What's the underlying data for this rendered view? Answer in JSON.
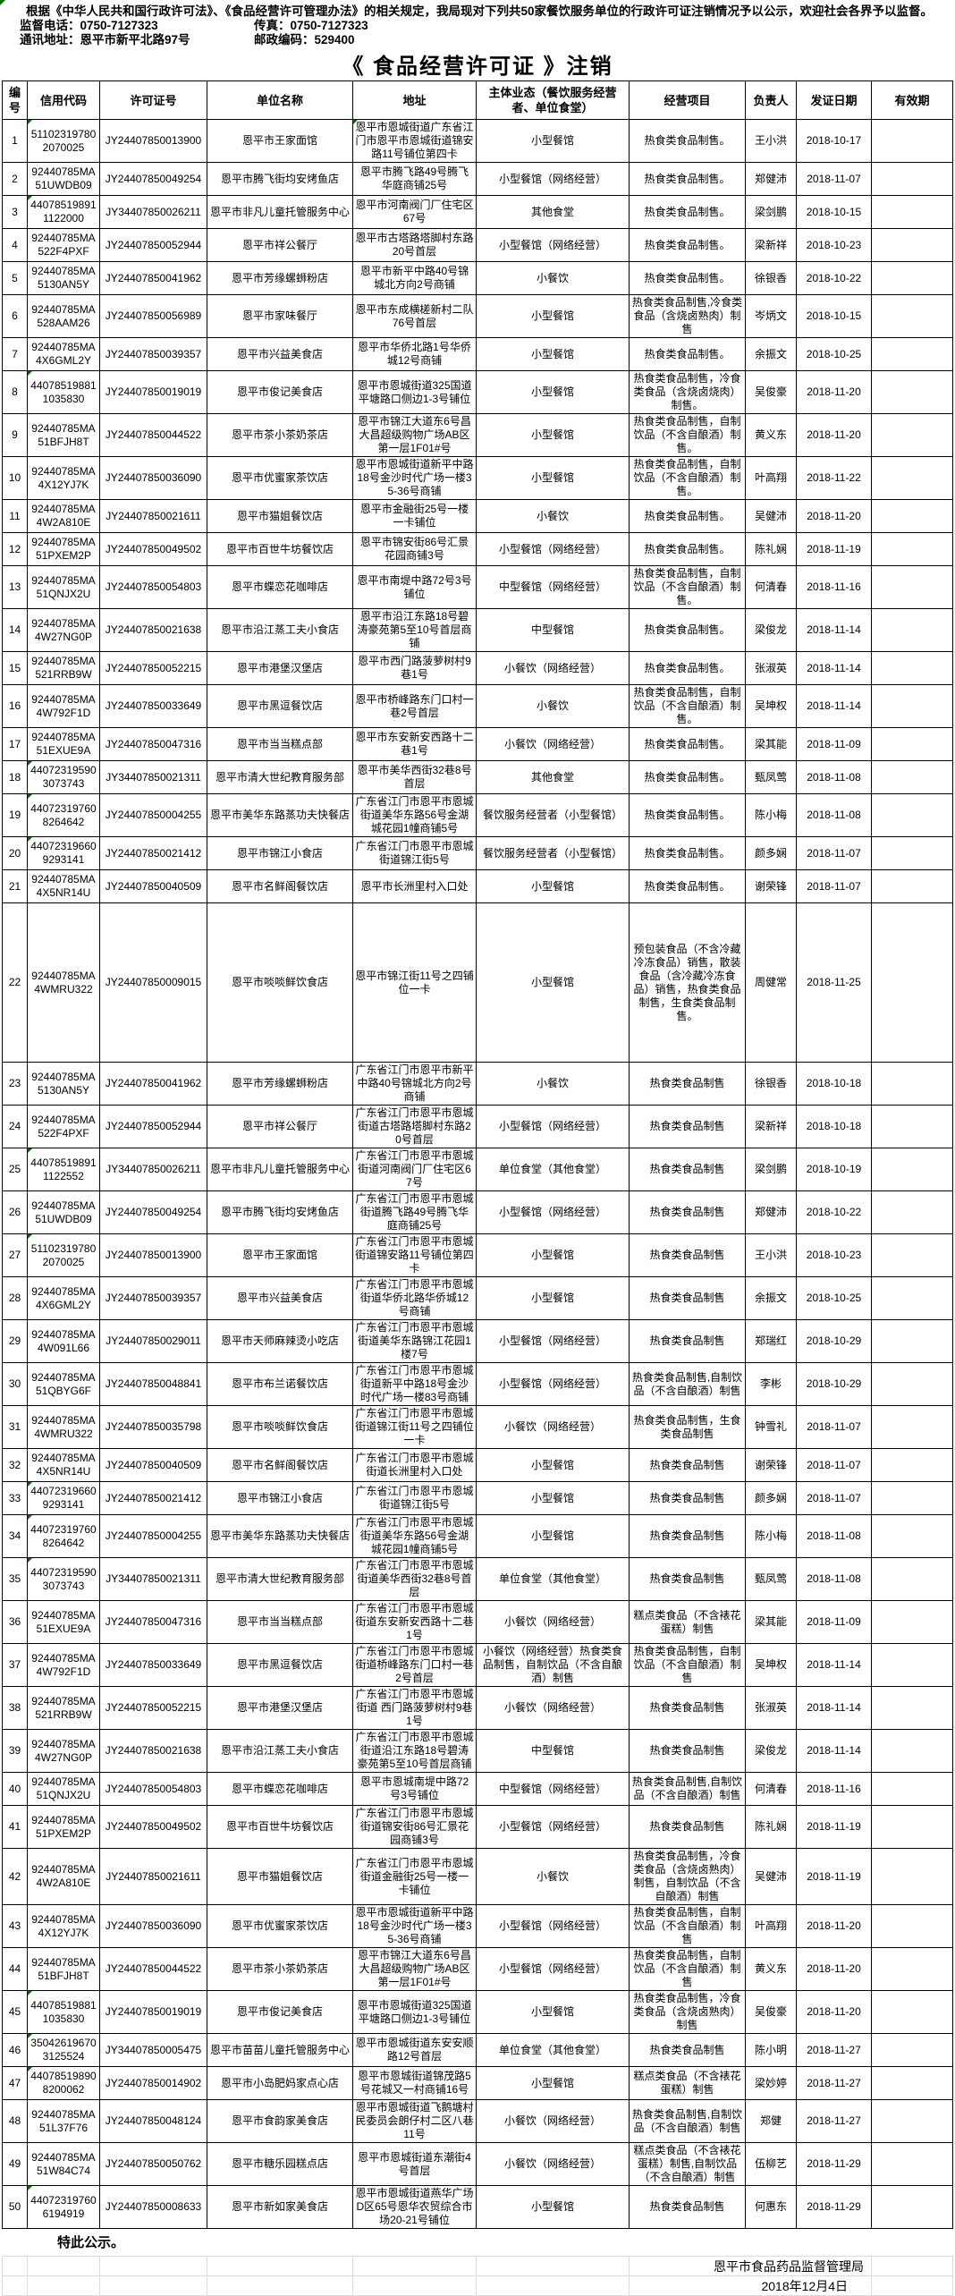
{
  "page": {
    "intro": "根据《中华人民共和国行政许可法》、《食品经营许可管理办法》的相关规定，我局现对下列共50家餐饮服务单位的行政许可证注销情况予以公示，欢迎社会各界予以监督。",
    "phone_label": "监督电话：",
    "phone": "0750-7127323",
    "fax_label": "传真：",
    "fax": "0750-7127323",
    "address_label": "通讯地址：",
    "address": "恩平市新平北路97号",
    "postcode_label": "邮政编码：",
    "postcode": "529400",
    "title": "《 食品经营许可证 》注销"
  },
  "table": {
    "headers": [
      "编号",
      "信用代码",
      "许可证号",
      "单位名称",
      "地址",
      "主体业态（餐饮服务经营者、单位食堂）",
      "经营项目",
      "负责人",
      "发证日期",
      "有效期"
    ],
    "rows": [
      {
        "no": 1,
        "credit": "511023197802070025",
        "license": "JY24407850013900",
        "name": "恩平市王家面馆",
        "addr": "恩平市恩城街道广东省江门市恩平市恩城街道锦安路11号铺位第四卡",
        "type": "小型餐馆",
        "scope": "热食类食品制售。",
        "person": "王小洪",
        "date": "2018-10-17",
        "valid": "",
        "marker": true,
        "addr_marker": true
      },
      {
        "no": 2,
        "credit": "92440785MA51UWDB09",
        "license": "JY24407850049254",
        "name": "恩平市腾飞街均安烤鱼店",
        "addr": "恩平市腾飞路49号腾飞华庭商铺25号",
        "type": "小型餐馆（网络经营）",
        "scope": "热食类食品制售。",
        "person": "郑健沛",
        "date": "2018-11-07",
        "valid": ""
      },
      {
        "no": 3,
        "credit": "440785198911122000",
        "license": "JY34407850026211",
        "name": "恩平市非凡儿童托管服务中心",
        "addr": "恩平市河南阀门厂住宅区67号",
        "type": "其他食堂",
        "scope": "热食类食品制售。",
        "person": "梁剑鹏",
        "date": "2018-10-15",
        "valid": "",
        "marker": true
      },
      {
        "no": 4,
        "credit": "92440785MA522F4PXF",
        "license": "JY24407850052944",
        "name": "恩平市祥公餐厅",
        "addr": "恩平市古塔路塔脚村东路20号首层",
        "type": "小型餐馆（网络经营）",
        "scope": "热食类食品制售。",
        "person": "梁新祥",
        "date": "2018-10-23",
        "valid": ""
      },
      {
        "no": 5,
        "credit": "92440785MA5130AN5Y",
        "license": "JY24407850041962",
        "name": "恩平市芳缘螺蛳粉店",
        "addr": "恩平市新平中路40号锦城北方向2号商铺",
        "type": "小餐饮",
        "scope": "热食类食品制售。",
        "person": "徐银香",
        "date": "2018-10-22",
        "valid": ""
      },
      {
        "no": 6,
        "credit": "92440785MA528AAM26",
        "license": "JY24407850056989",
        "name": "恩平市家味餐厅",
        "addr": "恩平市东成横槎新村二队76号首层",
        "type": "小型餐馆",
        "scope": "热食类食品制售,冷食类食品（含烧卤熟肉）制售",
        "person": "岑炳文",
        "date": "2018-10-15",
        "valid": ""
      },
      {
        "no": 7,
        "credit": "92440785MA4X6GML2Y",
        "license": "JY24407850039357",
        "name": "恩平市兴益美食店",
        "addr": "恩平市华侨北路1号华侨城12号商铺",
        "type": "小型餐馆",
        "scope": "热食类食品制售。",
        "person": "余振文",
        "date": "2018-10-25",
        "valid": ""
      },
      {
        "no": 8,
        "credit": "440785198811035830",
        "license": "JY24407850019019",
        "name": "恩平市俊记美食店",
        "addr": "恩平市恩城街道325国道平塘路口侧边1-3号铺位",
        "type": "小型餐馆",
        "scope": "热食类食品制售，冷食类食品（含烧卤烧肉）制售。",
        "person": "吴俊豪",
        "date": "2018-11-20",
        "valid": "",
        "marker": true
      },
      {
        "no": 9,
        "credit": "92440785MA51BFJH8T",
        "license": "JY24407850044522",
        "name": "恩平市茶小茶奶茶店",
        "addr": "恩平市锦江大道东6号昌大昌超级购物广场AB区第一层1F01#号",
        "type": "小型餐馆",
        "scope": "热食类食品制售，自制饮品（不含自酿酒）制售。",
        "person": "黄义东",
        "date": "2018-11-20",
        "valid": ""
      },
      {
        "no": 10,
        "credit": "92440785MA4X12YJ7K",
        "license": "JY24407850036090",
        "name": "恩平市优蜜家茶饮店",
        "addr": "恩平市恩城街道新平中路18号金沙时代广场一楼35-36号商铺",
        "type": "小型餐馆",
        "scope": "热食类食品制售，自制饮品（不含自酿酒）制售。",
        "person": "叶高翔",
        "date": "2018-11-22",
        "valid": ""
      },
      {
        "no": 11,
        "credit": "92440785MA4W2A810E",
        "license": "JY24407850021611",
        "name": "恩平市猫姐餐饮店",
        "addr": "恩平市金融街25号一楼一卡铺位",
        "type": "小餐饮",
        "scope": "热食类食品制售。",
        "person": "吴健沛",
        "date": "2018-11-20",
        "valid": ""
      },
      {
        "no": 12,
        "credit": "92440785MA51PXEM2P",
        "license": "JY24407850049502",
        "name": "恩平市百世牛坊餐饮店",
        "addr": "恩平市锦安街86号汇景花园商铺3号",
        "type": "小型餐馆（网络经营）",
        "scope": "热食类食品制售。",
        "person": "陈礼娴",
        "date": "2018-11-19",
        "valid": ""
      },
      {
        "no": 13,
        "credit": "92440785MA51QNJX2U",
        "license": "JY24407850054803",
        "name": "恩平市蝶恋花咖啡店",
        "addr": "恩平市南堤中路72号3号铺位",
        "type": "中型餐馆（网络经营）",
        "scope": "热食类食品制售，自制饮品（不含自酿酒）制售。",
        "person": "何清春",
        "date": "2018-11-16",
        "valid": ""
      },
      {
        "no": 14,
        "credit": "92440785MA4W27NG0P",
        "license": "JY24407850021638",
        "name": "恩平市沿江蒸工夫小食店",
        "addr": "恩平市沿江东路18号碧涛豪苑第5至10号首层商铺",
        "type": "中型餐馆",
        "scope": "热食类食品制售。",
        "person": "梁俊龙",
        "date": "2018-11-14",
        "valid": ""
      },
      {
        "no": 15,
        "credit": "92440785MA521RRB9W",
        "license": "JY24407850052215",
        "name": "恩平市港堡汉堡店",
        "addr": "恩平市西门路菠萝树村9巷1号",
        "type": "小餐饮（网络经营）",
        "scope": "热食类食品制售。",
        "person": "张淑英",
        "date": "2018-11-14",
        "valid": ""
      },
      {
        "no": 16,
        "credit": "92440785MA4W792F1D",
        "license": "JY24407850033649",
        "name": "恩平市黑逗餐饮店",
        "addr": "恩平市桥峰路东门口村一巷2号首层",
        "type": "小餐饮",
        "scope": "热食类食品制售，自制饮品（不含自酿酒）制售。",
        "person": "吴坤权",
        "date": "2018-11-14",
        "valid": ""
      },
      {
        "no": 17,
        "credit": "92440785MA51EXUE9A",
        "license": "JY24407850047316",
        "name": "恩平市当当糕点部",
        "addr": "恩平市东安新安西路十二巷1号",
        "type": "小餐饮（网络经营）",
        "scope": "热食类食品制售。",
        "person": "梁其能",
        "date": "2018-11-09",
        "valid": ""
      },
      {
        "no": 18,
        "credit": "440723195903073743",
        "license": "JY34407850021311",
        "name": "恩平市清大世纪教育服务部",
        "addr": "恩平市美华西街32巷8号首层",
        "type": "其他食堂",
        "scope": "热食类食品制售。",
        "person": "甄凤莺",
        "date": "2018-11-08",
        "valid": "",
        "marker": true
      },
      {
        "no": 19,
        "credit": "440723197608264642",
        "license": "JY24407850004255",
        "name": "恩平市美华东路蒸功夫快餐店",
        "addr": "广东省江门市恩平市恩城街道美华东路56号金湖城花园1幢商铺5号",
        "type": "餐饮服务经营者（小型餐馆）",
        "scope": "热食类食品制售。",
        "person": "陈小梅",
        "date": "2018-11-08",
        "valid": "",
        "marker": true
      },
      {
        "no": 20,
        "credit": "440723196609293141",
        "license": "JY24407850021412",
        "name": "恩平市锦江小食店",
        "addr": "广东省江门市恩平市恩城街道锦江街5号",
        "type": "餐饮服务经营者（小型餐馆）",
        "scope": "热食类食品制售。",
        "person": "颜多娴",
        "date": "2018-11-07",
        "valid": "",
        "marker": true
      },
      {
        "no": 21,
        "credit": "92440785MA4X5NR14U",
        "license": "JY24407850040509",
        "name": "恩平市名鲜阁餐饮店",
        "addr": "恩平市长洲里村入口处",
        "type": "小型餐馆",
        "scope": "热食类食品制售。",
        "person": "谢荣锋",
        "date": "2018-11-07",
        "valid": ""
      },
      {
        "no": 22,
        "credit": "92440785MA4WMRU322",
        "license": "JY24407850009015",
        "name": "恩平市啖啖鲜饮食店",
        "addr": "恩平市锦江街11号之四铺位一卡",
        "type": "小型餐馆",
        "scope": "预包装食品（不含冷藏冷冻食品）销售，散装食品（含冷藏冷冻食品）销售，热食类食品制售，生食类食品制售。",
        "person": "周健常",
        "date": "2018-11-25",
        "valid": ""
      },
      {
        "no": 23,
        "credit": "92440785MA5130AN5Y",
        "license": "JY24407850041962",
        "name": "恩平市芳缘螺蛳粉店",
        "addr": "广东省江门市恩平市新平中路40号锦城北方向2号商铺",
        "type": "小餐饮",
        "scope": "热食类食品制售",
        "person": "徐银香",
        "date": "2018-10-18",
        "valid": ""
      },
      {
        "no": 24,
        "credit": "92440785MA522F4PXF",
        "license": "JY24407850052944",
        "name": "恩平市祥公餐厅",
        "addr": "广东省江门市恩平市恩城街道古塔路塔脚村东路20号首层",
        "type": "小型餐馆（网络经营）",
        "scope": "热食类食品制售",
        "person": "梁新祥",
        "date": "2018-10-18",
        "valid": ""
      },
      {
        "no": 25,
        "credit": "440785198911122552",
        "license": "JY34407850026211",
        "name": "恩平市非凡儿童托管服务中心",
        "addr": "广东省江门市恩平市恩城街道河南阀门厂住宅区67号",
        "type": "单位食堂（其他食堂）",
        "scope": "热食类食品制售",
        "person": "梁剑鹏",
        "date": "2018-10-19",
        "valid": "",
        "marker": true
      },
      {
        "no": 26,
        "credit": "92440785MA51UWDB09",
        "license": "JY24407850049254",
        "name": "恩平市腾飞街均安烤鱼店",
        "addr": "广东省江门市恩平市恩城街道腾飞路49号腾飞华庭商铺25号",
        "type": "小型餐馆（网络经营）",
        "scope": "热食类食品制售",
        "person": "郑健沛",
        "date": "2018-10-22",
        "valid": ""
      },
      {
        "no": 27,
        "credit": "511023197802070025",
        "license": "JY24407850013900",
        "name": "恩平市王家面馆",
        "addr": "广东省江门市恩平市恩城街道锦安路11号铺位第四卡",
        "type": "小型餐馆",
        "scope": "热食类食品制售",
        "person": "王小洪",
        "date": "2018-10-23",
        "valid": "",
        "marker": true
      },
      {
        "no": 28,
        "credit": "92440785MA4X6GML2Y",
        "license": "JY24407850039357",
        "name": "恩平市兴益美食店",
        "addr": "广东省江门市恩平市恩城街道华侨北路华侨城12号商铺",
        "type": "小型餐馆",
        "scope": "热食类食品制售",
        "person": "余振文",
        "date": "2018-10-25",
        "valid": ""
      },
      {
        "no": 29,
        "credit": "92440785MA4W091L66",
        "license": "JY24407850029011",
        "name": "恩平市天师麻辣烫小吃店",
        "addr": "广东省江门市恩平市恩城街道美华东路锦江花园1楼7号",
        "type": "小型餐馆（网络经营）",
        "scope": "热食类食品制售",
        "person": "郑瑞红",
        "date": "2018-10-29",
        "valid": ""
      },
      {
        "no": 30,
        "credit": "92440785MA51QBYG6F",
        "license": "JY24407850048841",
        "name": "恩平市布兰诺餐饮店",
        "addr": "广东省江门市恩平市恩城街道新平中路18号金沙时代广场一楼83号商铺",
        "type": "小型餐馆（网络经营）",
        "scope": "热食类食品制售,自制饮品（不含自酿酒）制售",
        "person": "李彬",
        "date": "2018-10-29",
        "valid": ""
      },
      {
        "no": 31,
        "credit": "92440785MA4WMRU322",
        "license": "JY24407850035798",
        "name": "恩平市啖啖鲜饮食店",
        "addr": "广东省江门市恩平市恩城街道锦江街11号之四铺位一卡",
        "type": "小餐饮（网络经营）",
        "scope": "热食类食品制售，生食类食品制售",
        "person": "钟雪礼",
        "date": "2018-11-07",
        "valid": ""
      },
      {
        "no": 32,
        "credit": "92440785MA4X5NR14U",
        "license": "JY24407850040509",
        "name": "恩平市名鲜阁餐饮店",
        "addr": "广东省江门市恩平市恩城街道长洲里村入口处",
        "type": "小型餐馆",
        "scope": "热食类食品制售",
        "person": "谢荣锋",
        "date": "2018-11-07",
        "valid": ""
      },
      {
        "no": 33,
        "credit": "440723196609293141",
        "license": "JY24407850021412",
        "name": "恩平市锦江小食店",
        "addr": "广东省江门市恩平市恩城街道锦江街5号",
        "type": "小型餐馆",
        "scope": "热食类食品制售",
        "person": "颜多娴",
        "date": "2018-11-07",
        "valid": "",
        "marker": true
      },
      {
        "no": 34,
        "credit": "440723197608264642",
        "license": "JY24407850004255",
        "name": "恩平市美华东路蒸功夫快餐店",
        "addr": "广东省江门市恩平市恩城街道美华东路56号金湖城花园1幢商铺5号",
        "type": "小型餐馆",
        "scope": "热食类食品制售",
        "person": "陈小梅",
        "date": "2018-11-08",
        "valid": "",
        "marker": true
      },
      {
        "no": 35,
        "credit": "440723195903073743",
        "license": "JY34407850021311",
        "name": "恩平市清大世纪教育服务部",
        "addr": "广东省江门市恩平市恩城街道美华西街32巷8号首层",
        "type": "单位食堂（其他食堂）",
        "scope": "热食类食品制售",
        "person": "甄凤莺",
        "date": "2018-11-08",
        "valid": "",
        "marker": true
      },
      {
        "no": 36,
        "credit": "92440785MA51EXUE9A",
        "license": "JY24407850047316",
        "name": "恩平市当当糕点部",
        "addr": "广东省江门市恩平市恩城街道东安新安西路十二巷1号",
        "type": "小餐饮（网络经营）",
        "scope": "糕点类食品（不含裱花蛋糕）制售",
        "person": "梁其能",
        "date": "2018-11-09",
        "valid": ""
      },
      {
        "no": 37,
        "credit": "92440785MA4W792F1D",
        "license": "JY24407850033649",
        "name": "恩平市黑逗餐饮店",
        "addr": "广东省江门市恩平市恩城街道桥峰路东门口村一巷2号首层",
        "type": "小餐饮（网络经营）热食类食品制售，自制饮品（不含自酿酒）制售",
        "scope": "热食类食品制售，自制饮品（不含自酿酒）制售",
        "person": "吴坤权",
        "date": "2018-11-14",
        "valid": ""
      },
      {
        "no": 38,
        "credit": "92440785MA521RRB9W",
        "license": "JY24407850052215",
        "name": "恩平市港堡汉堡店",
        "addr": "广东省江门市恩平市恩城街道 西门路菠萝树村9巷1号",
        "type": "小餐饮（网络经营）",
        "scope": "热食类食品制售",
        "person": "张淑英",
        "date": "2018-11-14",
        "valid": ""
      },
      {
        "no": 39,
        "credit": "92440785MA4W27NG0P",
        "license": "JY24407850021638",
        "name": "恩平市沿江蒸工夫小食店",
        "addr": "广东省江门市恩平市恩城街道沿江东路18号碧涛豪苑第5至10号首层商铺",
        "type": "中型餐馆",
        "scope": "热食类食品制售",
        "person": "梁俊龙",
        "date": "2018-11-14",
        "valid": ""
      },
      {
        "no": 40,
        "credit": "92440785MA51QNJX2U",
        "license": "JY24407850054803",
        "name": "恩平市蝶恋花咖啡店",
        "addr": "恩平市恩城南堤中路72号3号铺位",
        "type": "中型餐馆（网络经营）",
        "scope": "热食类食品制售,自制饮品（不含自酿酒）制售",
        "person": "何清春",
        "date": "2018-11-16",
        "valid": ""
      },
      {
        "no": 41,
        "credit": "92440785MA51PXEM2P",
        "license": "JY24407850049502",
        "name": "恩平市百世牛坊餐饮店",
        "addr": "广东省江门市恩平市恩城街道锦安街86号汇景花园商铺3号",
        "type": "小型餐馆（网络经营）",
        "scope": "热食类食品制售",
        "person": "陈礼娴",
        "date": "2018-11-19",
        "valid": ""
      },
      {
        "no": 42,
        "credit": "92440785MA4W2A810E",
        "license": "JY24407850021611",
        "name": "恩平市猫姐餐饮店",
        "addr": "广东省江门市恩平市恩城街道金融街25号一楼一卡铺位",
        "type": "小餐饮",
        "scope": "热食类食品制售，冷食类食品（含烧卤熟肉）制售，自制饮品（不含自酿酒）制售",
        "person": "吴健沛",
        "date": "2018-11-19",
        "valid": ""
      },
      {
        "no": 43,
        "credit": "92440785MA4X12YJ7K",
        "license": "JY24407850036090",
        "name": "恩平市优蜜家茶饮店",
        "addr": "恩平市恩城街道新平中路18号金沙时代广场一楼35-36号商铺",
        "type": "小型餐馆（网络经营）",
        "scope": "热食类食品制售，自制饮品（不含自酿酒）制售",
        "person": "叶高翔",
        "date": "2018-11-20",
        "valid": ""
      },
      {
        "no": 44,
        "credit": "92440785MA51BFJH8T",
        "license": "JY24407850044522",
        "name": "恩平市茶小茶奶茶店",
        "addr": "恩平市锦江大道东6号昌大昌超级购物广场AB区第一层1F01#号",
        "type": "小型餐馆（网络经营）",
        "scope": "热食类食品制售，自制饮品（不含自酿酒）制售",
        "person": "黄义东",
        "date": "2018-11-20",
        "valid": ""
      },
      {
        "no": 45,
        "credit": "440785198811035830",
        "license": "JY24407850019019",
        "name": "恩平市俊记美食店",
        "addr": "恩平市恩城街道325国道平塘路口侧边1-3号铺位",
        "type": "小型餐馆",
        "scope": "热食类食品制售，冷食类食品（含烧卤熟肉）制售",
        "person": "吴俊豪",
        "date": "2018-11-20",
        "valid": "",
        "marker": true
      },
      {
        "no": 46,
        "credit": "350426196703125524",
        "license": "JY34407850005475",
        "name": "恩平市苗苗儿童托管服务中心",
        "addr": "恩平市恩城街道东安安顺路12号首层",
        "type": "单位食堂（其他食堂）",
        "scope": "热食类食品制售",
        "person": "陈小明",
        "date": "2018-11-27",
        "valid": "",
        "marker": true
      },
      {
        "no": 47,
        "credit": "440785198908200062",
        "license": "JY24407850014902",
        "name": "恩平市小岛肥妈家点心店",
        "addr": "恩平市恩城街道锦茂路5号花城又一村商铺16号",
        "type": "小型餐馆",
        "scope": "糕点类食品（不含裱花蛋糕）制售",
        "person": "梁妙婷",
        "date": "2018-11-27",
        "valid": "",
        "marker": true
      },
      {
        "no": 48,
        "credit": "92440785MA51L37F76",
        "license": "JY24407850048124",
        "name": "恩平市食韵家美食店",
        "addr": "恩平市恩城街道飞鹅塘村民委员会朗仔村二区八巷11号",
        "type": "小餐饮（网络经营）",
        "scope": "热食类食品制售,自制饮品（不含自酿酒）制售",
        "person": "郑健",
        "date": "2018-11-27",
        "valid": ""
      },
      {
        "no": 49,
        "credit": "92440785MA51W84C74",
        "license": "JY24407850050762",
        "name": "恩平市糖乐园糕点店",
        "addr": "恩平市恩城街道东潮街4号首层",
        "type": "小餐饮（网络经营）",
        "scope": "糕点类食品（不含裱花蛋糕）制售,自制饮品（不含自酿酒）制售",
        "person": "伍柳艺",
        "date": "2018-11-29",
        "valid": ""
      },
      {
        "no": 50,
        "credit": "440723197606194919",
        "license": "JY24407850008633",
        "name": "恩平市新如家美食店",
        "addr": "恩平市恩城街道燕华广场D区65号恩华农贸综合市场20-21号铺位",
        "type": "小型餐馆",
        "scope": "热食类食品制售",
        "person": "何惠东",
        "date": "2018-11-29",
        "valid": "",
        "marker": true
      }
    ]
  },
  "footer": {
    "closing": "特此公示。",
    "org": "恩平市食品药品监督管理局",
    "date": "2018年12月4日"
  }
}
